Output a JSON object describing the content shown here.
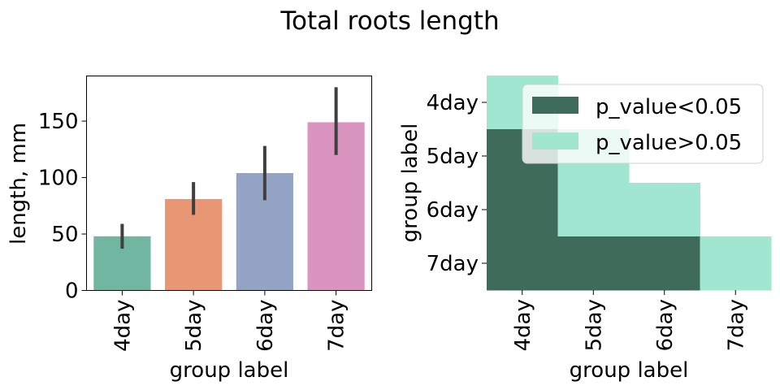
{
  "suptitle": "Total roots length",
  "chart_data": [
    {
      "type": "bar",
      "categories": [
        "4day",
        "5day",
        "6day",
        "7day"
      ],
      "values": [
        48,
        81,
        104,
        149
      ],
      "error_low": [
        37,
        67,
        80,
        120
      ],
      "error_high": [
        59,
        96,
        128,
        180
      ],
      "colors": [
        "#71b6a0",
        "#e99675",
        "#94a4c5",
        "#d995c0"
      ],
      "error_color": "#3f3f3f",
      "xlabel": "group label",
      "ylabel": "length, mm",
      "ylim": [
        0,
        190
      ],
      "yticks": [
        0,
        50,
        100,
        150
      ],
      "grid": false
    },
    {
      "type": "heatmap",
      "x_categories": [
        "4day",
        "5day",
        "6day",
        "7day"
      ],
      "y_categories": [
        "4day",
        "5day",
        "6day",
        "7day"
      ],
      "values": [
        [
          "p_value>0.05",
          null,
          null,
          null
        ],
        [
          "p_value<0.05",
          "p_value>0.05",
          null,
          null
        ],
        [
          "p_value<0.05",
          "p_value>0.05",
          "p_value>0.05",
          null
        ],
        [
          "p_value<0.05",
          "p_value<0.05",
          "p_value<0.05",
          "p_value>0.05"
        ]
      ],
      "xlabel": "group label",
      "ylabel": "group label",
      "legend": [
        {
          "label": "p_value<0.05",
          "color": "#3e6b5a"
        },
        {
          "label": "p_value>0.05",
          "color": "#a1e6d0"
        }
      ],
      "legend_position": "top-right"
    }
  ]
}
